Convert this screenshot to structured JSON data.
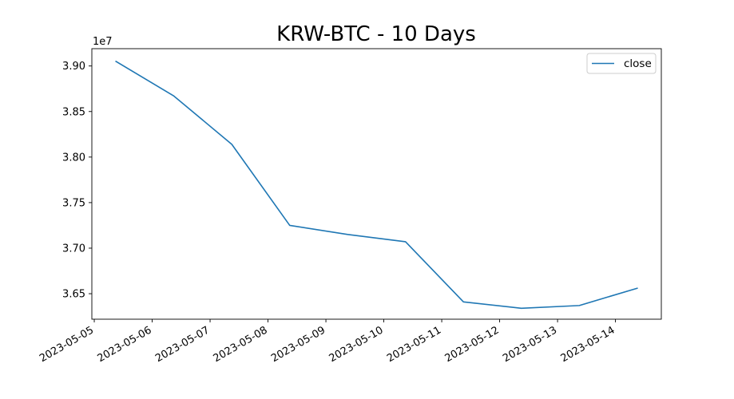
{
  "chart_data": {
    "type": "line",
    "title": "KRW-BTC - 10 Days",
    "xlabel": "",
    "ylabel": "",
    "y_offset_label": "1e7",
    "y_scale_factor": 10000000,
    "x": [
      "2023-05-05T09:00",
      "2023-05-06T09:00",
      "2023-05-07T09:00",
      "2023-05-08T09:00",
      "2023-05-09T09:00",
      "2023-05-10T09:00",
      "2023-05-11T09:00",
      "2023-05-12T09:00",
      "2023-05-13T09:00",
      "2023-05-14T09:00"
    ],
    "series": [
      {
        "name": "close",
        "color": "#1f77b4",
        "values": [
          39050000,
          38670000,
          38140000,
          37250000,
          37150000,
          37070000,
          36410000,
          36340000,
          36370000,
          36560000
        ]
      }
    ],
    "xlim": [
      "2023-05-04T23:00",
      "2023-05-14T19:00"
    ],
    "ylim": [
      36220000,
      39190000
    ],
    "x_ticks": [
      "2023-05-05",
      "2023-05-06",
      "2023-05-07",
      "2023-05-08",
      "2023-05-09",
      "2023-05-10",
      "2023-05-11",
      "2023-05-12",
      "2023-05-13",
      "2023-05-14"
    ],
    "y_ticks": [
      36500000,
      37000000,
      37500000,
      38000000,
      38500000,
      39000000
    ],
    "y_tick_labels": [
      "3.65",
      "3.70",
      "3.75",
      "3.80",
      "3.85",
      "3.90"
    ],
    "grid": false,
    "legend": "top-right"
  }
}
